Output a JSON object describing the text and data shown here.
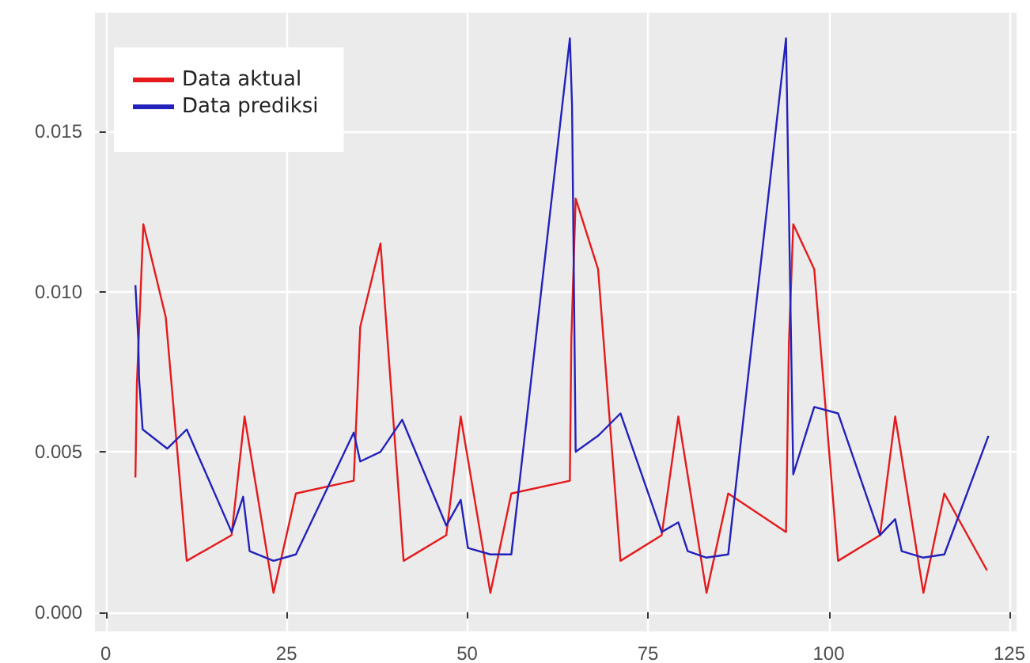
{
  "chart_data": {
    "type": "line",
    "xlim": [
      -1.5,
      126
    ],
    "xticks": [
      0,
      25,
      50,
      75,
      100,
      125
    ],
    "ylim": [
      -0.0006,
      0.0187
    ],
    "yticks": [
      {
        "value": 0,
        "label": "0.000"
      },
      0.005,
      {
        "value": 0.01,
        "label": "0.010"
      },
      0.015
    ],
    "grid": true,
    "legend": "top left",
    "line_style": "solid",
    "series": [
      {
        "name": "Data aktual",
        "color": "#e41a1c",
        "x": [
          4.1,
          4.3,
          5.2,
          8.3,
          11.2,
          17.4,
          19.2,
          23.2,
          26.3,
          34.3,
          35.2,
          38,
          41.2,
          47.1,
          49.1,
          53.2,
          56.1,
          64.2,
          64.4,
          65,
          68.1,
          71.2,
          76.9,
          79.2,
          83.1,
          86.1,
          94.1,
          94.5,
          95.1,
          98,
          101.3,
          107.1,
          109.2,
          113.1,
          116,
          121.9
        ],
        "values": [
          0.0042,
          0.0071,
          0.0121,
          0.0092,
          0.0016,
          0.0024,
          0.0061,
          0.0006,
          0.0037,
          0.0041,
          0.0089,
          0.0115,
          0.0016,
          0.0024,
          0.0061,
          0.0006,
          0.0037,
          0.0041,
          0.0085,
          0.0129,
          0.0107,
          0.0016,
          0.0024,
          0.0061,
          0.0006,
          0.0037,
          0.0025,
          0.0084,
          0.0121,
          0.0107,
          0.0016,
          0.0024,
          0.0061,
          0.0006,
          0.0037,
          0.0013
        ]
      },
      {
        "name": "Data prediksi",
        "color": "#2222bb",
        "x": [
          4.1,
          4.5,
          4.6,
          5.1,
          8.5,
          11.2,
          17.4,
          19,
          19.9,
          23.2,
          26.3,
          34.3,
          35.2,
          38,
          41,
          47.1,
          49.1,
          50.1,
          53.2,
          56.1,
          64.2,
          64.5,
          65,
          68.1,
          71.2,
          76.9,
          79.2,
          80.5,
          83.1,
          86.1,
          94.1,
          94.5,
          95.1,
          98,
          101.3,
          107.1,
          109.2,
          110.1,
          113.1,
          116,
          122.1
        ],
        "values": [
          0.0102,
          0.0085,
          0.0073,
          0.0057,
          0.0051,
          0.0057,
          0.0025,
          0.0036,
          0.0019,
          0.0016,
          0.0018,
          0.0056,
          0.0047,
          0.005,
          0.006,
          0.0027,
          0.0035,
          0.002,
          0.0018,
          0.0018,
          0.0179,
          0.0158,
          0.005,
          0.0055,
          0.0062,
          0.0025,
          0.0028,
          0.0019,
          0.0017,
          0.0018,
          0.0179,
          0.0125,
          0.0043,
          0.0064,
          0.0062,
          0.0024,
          0.0029,
          0.0019,
          0.0017,
          0.0018,
          0.0055
        ]
      }
    ]
  }
}
